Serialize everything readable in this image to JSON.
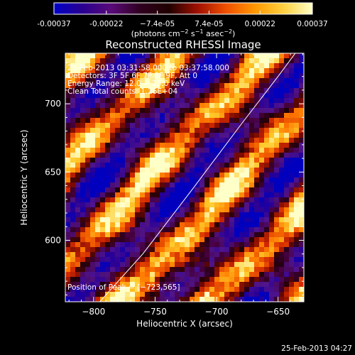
{
  "colorbar": {
    "tick_labels": [
      "-0.00037",
      "-0.00022",
      "−7.4e-05",
      "7.4e-05",
      "0.00022",
      "0.00037"
    ],
    "tick_values": [
      -0.00037,
      -0.00022,
      -7.4e-05,
      7.4e-05,
      0.00022,
      0.00037
    ],
    "units_main": "(photons cm",
    "units_sup1": "−2",
    "units_mid1": " s",
    "units_sup2": "−1",
    "units_mid2": " asec",
    "units_sup3": "−2",
    "units_end": ")",
    "range": [
      -0.00037,
      0.00037
    ],
    "colors": [
      "#0000c8",
      "#2a0090",
      "#5a0a78",
      "#300020",
      "#200000",
      "#a01000",
      "#f05000",
      "#ff9800",
      "#ffd040",
      "#ffffc8"
    ]
  },
  "plot": {
    "title": "Reconstructed RHESSI Image",
    "info_lines": [
      "25‐Feb‐2013 03:31:58.000 to 03:37:58.000",
      "Detectors: 3F 5F 6F 7F 8F 9F, Att 0",
      "Energy Range: 12.0 − 25.0 keV",
      "Clean    Total counts: 1.26E+04"
    ],
    "peak_label": "Position of Peak = [−723,565]"
  },
  "chart_data": {
    "type": "heatmap",
    "title": "Reconstructed RHESSI Image",
    "xlabel": "Heliocentric X (arcsec)",
    "ylabel": "Heliocentric Y (arcsec)",
    "xlim": [
      -823,
      -629
    ],
    "ylim": [
      555,
      737
    ],
    "x_ticks": [
      -800,
      -750,
      -700,
      -650
    ],
    "x_tick_labels": [
      "−800",
      "−750",
      "−700",
      "−650"
    ],
    "y_ticks": [
      600,
      650,
      700
    ],
    "y_tick_labels": [
      "600",
      "650",
      "700"
    ],
    "peak_position": [
      -723,
      565
    ],
    "limb_curve": [
      [
        -795,
        555
      ],
      [
        -760,
        590
      ],
      [
        -720,
        637
      ],
      [
        -680,
        685
      ],
      [
        -650,
        720
      ],
      [
        -636,
        737
      ]
    ]
  },
  "footer": {
    "timestamp": "25‐Feb‐2013 04:27"
  }
}
